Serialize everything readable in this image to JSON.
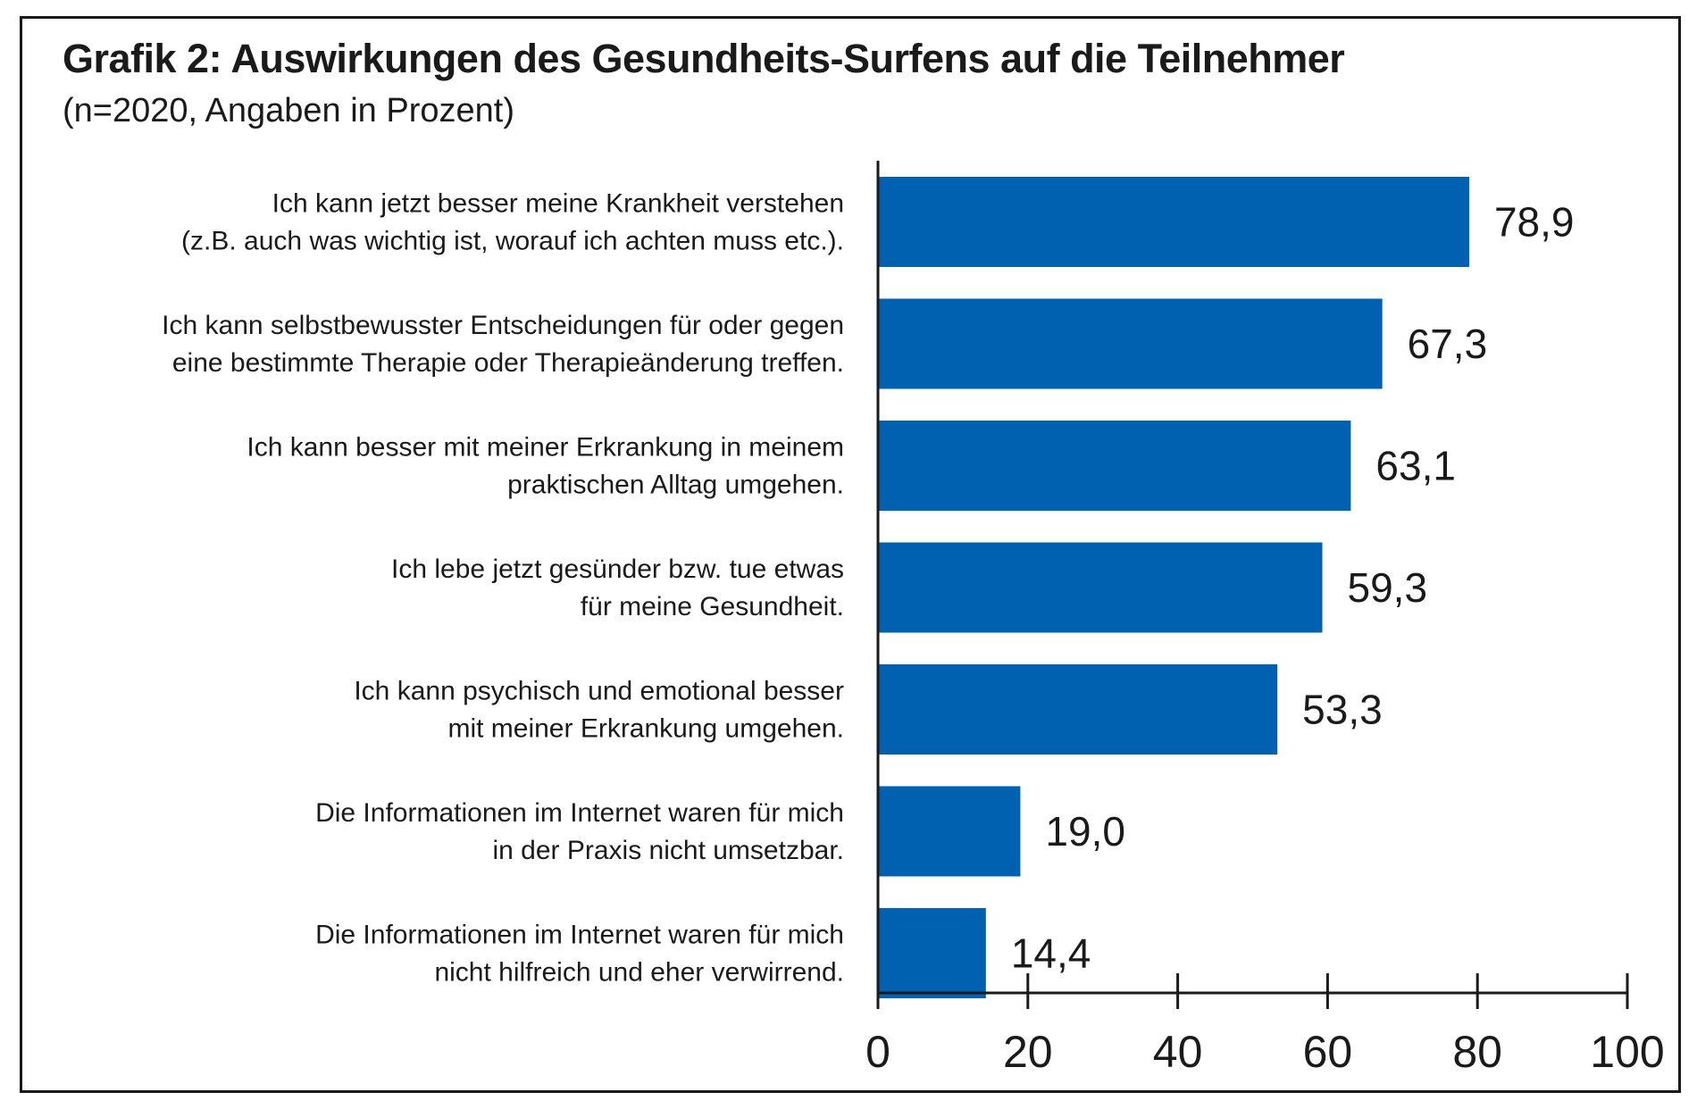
{
  "header": {
    "title": "Grafik 2: Auswirkungen des Gesundheits-Surfens auf die Teilnehmer",
    "subtitle": "(n=2020, Angaben in Prozent)"
  },
  "chart_data": {
    "type": "bar",
    "orientation": "horizontal",
    "title": "Grafik 2: Auswirkungen des Gesundheits-Surfens auf die Teilnehmer",
    "subtitle": "(n=2020, Angaben in Prozent)",
    "xlabel": "",
    "ylabel": "",
    "xlim": [
      0,
      100
    ],
    "ticks": [
      0,
      20,
      40,
      60,
      80,
      100
    ],
    "grid": false,
    "bar_color": "#0061b0",
    "categories": [
      [
        "Ich kann jetzt besser meine Krankheit verstehen",
        "(z.B. auch was wichtig ist, worauf ich achten muss etc.)."
      ],
      [
        "Ich kann selbstbewusster Entscheidungen für oder gegen",
        "eine bestimmte Therapie oder Therapieänderung treffen."
      ],
      [
        "Ich kann besser mit meiner Erkrankung in meinem",
        "praktischen Alltag umgehen."
      ],
      [
        "Ich lebe jetzt gesünder bzw. tue etwas",
        "für meine Gesundheit."
      ],
      [
        "Ich kann psychisch und emotional besser",
        "mit meiner Erkrankung umgehen."
      ],
      [
        "Die Informationen im Internet waren für mich",
        "in der Praxis nicht umsetzbar."
      ],
      [
        "Die Informationen im Internet waren für mich",
        "nicht hilfreich und eher verwirrend."
      ]
    ],
    "values": [
      78.9,
      67.3,
      63.1,
      59.3,
      53.3,
      19.0,
      14.4
    ],
    "value_labels": [
      "78,9",
      "67,3",
      "63,1",
      "59,3",
      "53,3",
      "19,0",
      "14,4"
    ]
  }
}
